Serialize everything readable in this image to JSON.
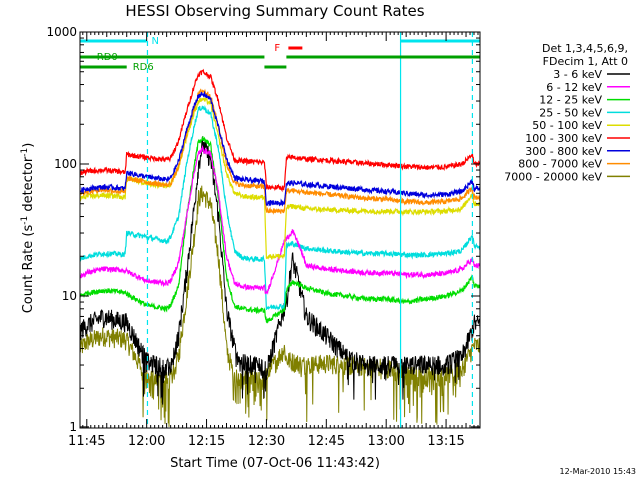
{
  "chart_data": {
    "type": "line",
    "title": "HESSI Observing Summary Count Rates",
    "xlabel": "Start Time (07-Oct-06 11:43:42)",
    "ylabel_main": "Count Rate (s",
    "ylabel_sup1": "-1",
    "ylabel_mid": " detector",
    "ylabel_sup2": "-1",
    "ylabel_end": ")",
    "yscale": "log",
    "ylim": [
      1,
      1000
    ],
    "xlim_minutes": [
      -1.7,
      98.5
    ],
    "x_unit": "minutes after 11:45",
    "x_ticks": [
      {
        "min": 0,
        "label": "11:45"
      },
      {
        "min": 15,
        "label": "12:00"
      },
      {
        "min": 30,
        "label": "12:15"
      },
      {
        "min": 45,
        "label": "12:30"
      },
      {
        "min": 60,
        "label": "12:45"
      },
      {
        "min": 75,
        "label": "13:00"
      },
      {
        "min": 90,
        "label": "13:15"
      }
    ],
    "y_ticks": [
      {
        "value": 1,
        "label": "1"
      },
      {
        "value": 10,
        "label": "10"
      },
      {
        "value": 100,
        "label": "100"
      },
      {
        "value": 1000,
        "label": "1000"
      }
    ],
    "legend_header": [
      "Det 1,3,4,5,6,9,",
      "FDecim 1, Att 0"
    ],
    "legend_placement": "right",
    "flags": [
      {
        "label": "N",
        "color": "#00e5ee",
        "segments": [
          [
            -1.7,
            15
          ],
          [
            78.5,
            98.5
          ]
        ],
        "label_at": 16.2,
        "level": 0
      },
      {
        "label": "F",
        "color": "#ff0000",
        "segments": [
          [
            50.5,
            54
          ]
        ],
        "label_at": 47,
        "level": 1
      },
      {
        "label": "RD0",
        "color": "#00a000",
        "segments": [
          [
            -1.7,
            44.5
          ],
          [
            50,
            98.5
          ]
        ],
        "label_at": 2.5,
        "level": 2
      },
      {
        "label": "RD6",
        "color": "#00a000",
        "segments": [
          [
            -1.7,
            10
          ],
          [
            44.5,
            50
          ]
        ],
        "label_at": 11.5,
        "level": 3
      }
    ],
    "vlines": [
      {
        "x": 15.2,
        "style": "dashed",
        "color": "#00e5ee"
      },
      {
        "x": 78.6,
        "style": "solid",
        "color": "#00e5ee"
      },
      {
        "x": 96.6,
        "style": "dashed",
        "color": "#00e5ee"
      }
    ],
    "x_points": [
      -1.7,
      0,
      4,
      8,
      9.6,
      10,
      15,
      20,
      21,
      23,
      25,
      27,
      28,
      29,
      31,
      33,
      35,
      37,
      39,
      42,
      44.5,
      45,
      49.5,
      50,
      51.5,
      53,
      55,
      60,
      65,
      70,
      75,
      80,
      85,
      90,
      94,
      96.6,
      97
    ],
    "series": [
      {
        "name": "3 - 6 keV",
        "color": "#000000",
        "values": [
          5.5,
          6,
          7,
          6.5,
          6.4,
          6.3,
          3.2,
          2.8,
          3,
          5,
          15,
          50,
          100,
          140,
          110,
          40,
          8,
          4,
          3.1,
          3,
          3,
          2.7,
          8.3,
          9,
          19,
          13,
          7,
          5,
          3.5,
          3,
          3,
          3,
          3,
          3,
          3.5,
          5.5,
          6.2
        ]
      },
      {
        "name": "6 - 12 keV",
        "color": "#ff00ff",
        "values": [
          14,
          15,
          16,
          15.8,
          15.6,
          15.4,
          13,
          12.5,
          13,
          18,
          40,
          90,
          120,
          130,
          120,
          60,
          20,
          12.5,
          11.8,
          11.5,
          11.5,
          10.2,
          26,
          27,
          31,
          25,
          17,
          16,
          15.5,
          15,
          15,
          14.5,
          14.5,
          14.8,
          16,
          19,
          17
        ]
      },
      {
        "name": "12 - 25 keV",
        "color": "#00dd00",
        "values": [
          10,
          10.5,
          11,
          10.8,
          10.6,
          10.4,
          8.5,
          8,
          8.5,
          12,
          40,
          100,
          150,
          155,
          140,
          55,
          14,
          8.4,
          8,
          7.8,
          7.8,
          6.4,
          7.9,
          11,
          12.8,
          12.3,
          11.5,
          10.5,
          10,
          9.5,
          9.5,
          9,
          9.5,
          10,
          11,
          14,
          12
        ]
      },
      {
        "name": "25 - 50 keV",
        "color": "#00dddd",
        "values": [
          19,
          20,
          21,
          20.8,
          20.6,
          30,
          28,
          26,
          28,
          40,
          100,
          200,
          260,
          270,
          240,
          130,
          45,
          22,
          19.5,
          19,
          19,
          8.2,
          8.4,
          24,
          25,
          24,
          23,
          22,
          21.5,
          21,
          21,
          20.5,
          20.5,
          21,
          22,
          29,
          24
        ]
      },
      {
        "name": "50 - 100 keV",
        "color": "#dddd00",
        "values": [
          55,
          57,
          58,
          57,
          56,
          78,
          72,
          68,
          70,
          95,
          160,
          250,
          300,
          310,
          290,
          160,
          85,
          60,
          57,
          56,
          56,
          20,
          20,
          47,
          48,
          47,
          46,
          45,
          44.5,
          44,
          44,
          43.5,
          43.5,
          44,
          46,
          60,
          50
        ]
      },
      {
        "name": "100 - 300 keV",
        "color": "#ff0000",
        "values": [
          85,
          88,
          90,
          88,
          86,
          118,
          112,
          108,
          110,
          150,
          250,
          400,
          480,
          500,
          460,
          300,
          160,
          108,
          105,
          104,
          103,
          67,
          66,
          110,
          113,
          111,
          109,
          107,
          104,
          101,
          99,
          96,
          94,
          95,
          100,
          118,
          100
        ]
      },
      {
        "name": "300 - 800 keV",
        "color": "#0000dd",
        "values": [
          63,
          65,
          67,
          66,
          65,
          86,
          80,
          76,
          78,
          105,
          180,
          280,
          330,
          340,
          310,
          190,
          110,
          79,
          76,
          75,
          74,
          51,
          51,
          71,
          72,
          71,
          70,
          68,
          66,
          64,
          62,
          60,
          58,
          59,
          62,
          75,
          65
        ]
      },
      {
        "name": "800 - 7000 keV",
        "color": "#ff8c00",
        "values": [
          60,
          62,
          64,
          62,
          61,
          78,
          73,
          69,
          71,
          95,
          170,
          270,
          340,
          360,
          330,
          190,
          100,
          72,
          69,
          68,
          67,
          44,
          44,
          62,
          63,
          62,
          61,
          59,
          57,
          55,
          54,
          52,
          51,
          52,
          55,
          66,
          56
        ]
      },
      {
        "name": "7000 - 20000 keV",
        "color": "#808000",
        "values": [
          4,
          4.5,
          5,
          4.8,
          4.7,
          4.6,
          2.4,
          2.2,
          2.3,
          3.5,
          10,
          30,
          55,
          60,
          50,
          20,
          4,
          2.4,
          2.3,
          2.3,
          2.3,
          2.5,
          4,
          3.3,
          3.2,
          3.1,
          3,
          3.1,
          3,
          2.9,
          2.9,
          2.5,
          2.5,
          2.5,
          2.8,
          4,
          4.2
        ]
      }
    ]
  },
  "footer_date": "12-Mar-2010 15:43"
}
